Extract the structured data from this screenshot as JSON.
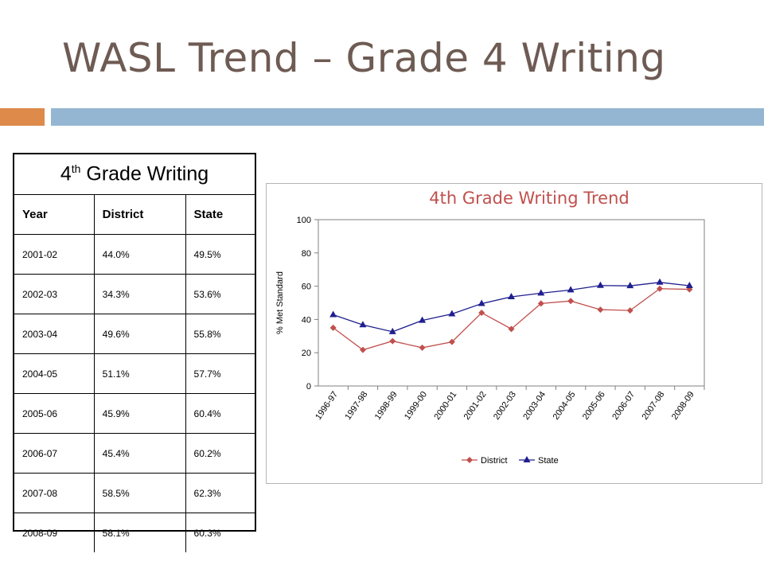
{
  "slide": {
    "title": "WASL Trend – Grade 4 Writing",
    "accent_colors": {
      "orange": "#dd8a4b",
      "blue": "#94b6d2"
    }
  },
  "table": {
    "caption_main": "4",
    "caption_sup": "th",
    "caption_rest": " Grade Writing",
    "headers": [
      "Year",
      "District",
      "State"
    ],
    "rows": [
      [
        "2001-02",
        "44.0%",
        "49.5%"
      ],
      [
        "2002-03",
        "34.3%",
        "53.6%"
      ],
      [
        "2003-04",
        "49.6%",
        "55.8%"
      ],
      [
        "2004-05",
        "51.1%",
        "57.7%"
      ],
      [
        "2005-06",
        "45.9%",
        "60.4%"
      ],
      [
        "2006-07",
        "45.4%",
        "60.2%"
      ],
      [
        "2007-08",
        "58.5%",
        "62.3%"
      ],
      [
        "2008-09",
        "58.1%",
        "60.3%"
      ]
    ]
  },
  "chart_data": {
    "type": "line",
    "title": "4th Grade Writing Trend",
    "ylabel": "% Met Standard",
    "xlabel": "",
    "ylim": [
      0,
      100
    ],
    "yticks": [
      0,
      20,
      40,
      60,
      80,
      100
    ],
    "grid": false,
    "legend_position": "bottom",
    "categories": [
      "1996-97",
      "1997-98",
      "1998-99",
      "1999-00",
      "2000-01",
      "2001-02",
      "2002-03",
      "2003-04",
      "2004-05",
      "2005-06",
      "2006-07",
      "2007-08",
      "2008-09"
    ],
    "series": [
      {
        "name": "District",
        "color": "#c0504d",
        "marker": "diamond",
        "values": [
          35,
          21.7,
          27,
          23,
          26.5,
          44.0,
          34.3,
          49.6,
          51.1,
          45.9,
          45.4,
          58.5,
          58.1
        ]
      },
      {
        "name": "State",
        "color": "#1f1f8f",
        "marker": "triangle",
        "values": [
          42.8,
          36.7,
          32.6,
          39.4,
          43.3,
          49.5,
          53.6,
          55.8,
          57.7,
          60.4,
          60.2,
          62.3,
          60.3
        ]
      }
    ],
    "title_color": "#c0504d"
  }
}
